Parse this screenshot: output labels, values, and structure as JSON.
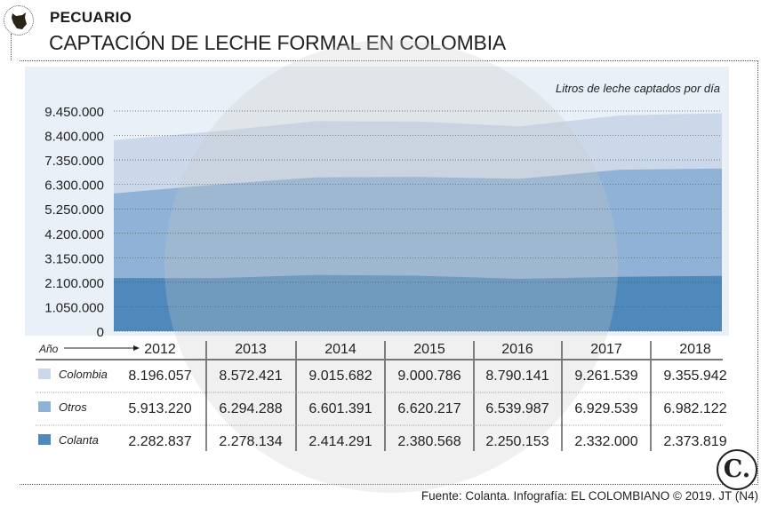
{
  "header": {
    "section": "PECUARIO",
    "title": "CAPTACIÓN DE LECHE FORMAL EN COLOMBIA"
  },
  "footer": {
    "source": "Fuente: Colanta. Infografía: EL COLOMBIANO © 2019. JT (N4)",
    "logo": "C."
  },
  "colors": {
    "Colombia": "#cbd8e9",
    "Otros": "#8fb2d6",
    "Colanta": "#4f88bb",
    "panel": "#e9f0f7"
  },
  "chart_data": {
    "type": "area",
    "subtitle": "Litros de leche captados por día",
    "xlabel": "Año",
    "categories": [
      "2012",
      "2013",
      "2014",
      "2015",
      "2016",
      "2017",
      "2018"
    ],
    "yticks": [
      "0",
      "1.050.000",
      "2.100.000",
      "3.150.000",
      "4.200.000",
      "5.250.000",
      "6.300.000",
      "7.350.000",
      "8.400.000",
      "9.450.000"
    ],
    "ylim": [
      0,
      9450000
    ],
    "grid": true,
    "series": [
      {
        "name": "Colombia",
        "values": [
          8196057,
          8572421,
          9015682,
          9000786,
          8790141,
          9261539,
          9355942
        ],
        "labels": [
          "8.196.057",
          "8.572.421",
          "9.015.682",
          "9.000.786",
          "8.790.141",
          "9.261.539",
          "9.355.942"
        ]
      },
      {
        "name": "Otros",
        "values": [
          5913220,
          6294288,
          6601391,
          6620217,
          6539987,
          6929539,
          6982122
        ],
        "labels": [
          "5.913.220",
          "6.294.288",
          "6.601.391",
          "6.620.217",
          "6.539.987",
          "6.929.539",
          "6.982.122"
        ]
      },
      {
        "name": "Colanta",
        "values": [
          2282837,
          2278134,
          2414291,
          2380568,
          2250153,
          2332000,
          2373819
        ],
        "labels": [
          "2.282.837",
          "2.278.134",
          "2.414.291",
          "2.380.568",
          "2.250.153",
          "2.332.000",
          "2.373.819"
        ]
      }
    ]
  }
}
